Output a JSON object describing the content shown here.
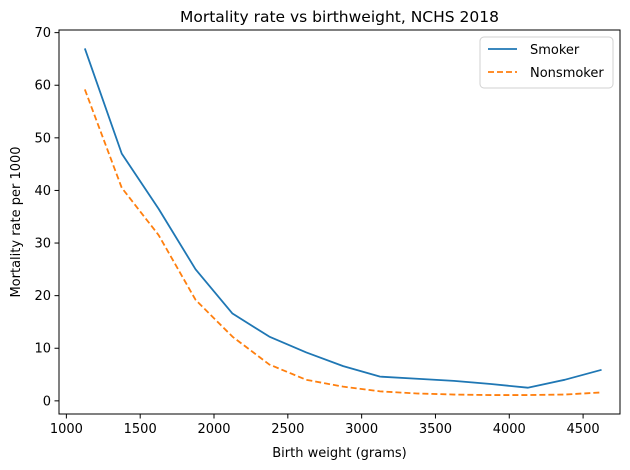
{
  "chart_data": {
    "type": "line",
    "title": "Mortality rate vs birthweight, NCHS 2018",
    "xlabel": "Birth weight (grams)",
    "ylabel": "Mortality rate per 1000",
    "xlim": [
      950,
      4750
    ],
    "ylim": [
      -2.5,
      70.5
    ],
    "xticks": [
      1000,
      1500,
      2000,
      2500,
      3000,
      3500,
      4000,
      4500
    ],
    "yticks": [
      0,
      10,
      20,
      30,
      40,
      50,
      60,
      70
    ],
    "xtick_labels": [
      "1000",
      "1500",
      "2000",
      "2500",
      "3000",
      "3500",
      "4000",
      "4500"
    ],
    "ytick_labels": [
      "0",
      "10",
      "20",
      "30",
      "40",
      "50",
      "60",
      "70"
    ],
    "grid": false,
    "legend_position": "top-right",
    "series": [
      {
        "name": "Smoker",
        "color": "#1f77b4",
        "line_style": "solid",
        "x": [
          1125,
          1375,
          1625,
          1875,
          2125,
          2375,
          2625,
          2875,
          3125,
          3375,
          3625,
          3875,
          4125,
          4375,
          4625
        ],
        "y": [
          67.0,
          47.0,
          36.5,
          25.0,
          16.6,
          12.2,
          9.2,
          6.6,
          4.6,
          4.2,
          3.8,
          3.2,
          2.5,
          4.0,
          5.9
        ]
      },
      {
        "name": "Nonsmoker",
        "color": "#ff7f0e",
        "line_style": "dashed",
        "x": [
          1125,
          1375,
          1625,
          1875,
          2125,
          2375,
          2625,
          2875,
          3125,
          3375,
          3625,
          3875,
          4125,
          4375,
          4625
        ],
        "y": [
          59.2,
          40.5,
          31.5,
          19.2,
          12.2,
          6.9,
          4.0,
          2.7,
          1.8,
          1.4,
          1.2,
          1.1,
          1.1,
          1.2,
          1.6
        ]
      }
    ]
  }
}
